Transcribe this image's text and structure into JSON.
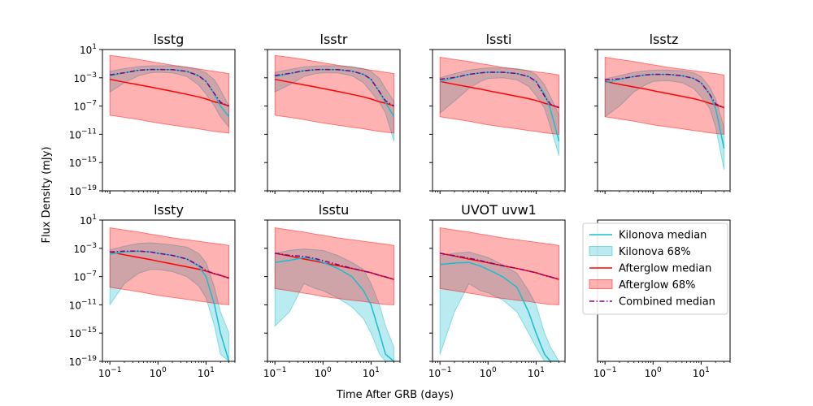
{
  "figure": {
    "xlabel": "Time After GRB (days)",
    "ylabel": "Flux Density (mJy)"
  },
  "legend": {
    "entries": [
      {
        "label": "Kilonova median",
        "kind": "line",
        "color": "#17becf",
        "dash": "solid"
      },
      {
        "label": "Kilonova 68%",
        "kind": "band",
        "color": "#17becf"
      },
      {
        "label": "Afterglow median",
        "kind": "line",
        "color": "#ff0000",
        "dash": "solid"
      },
      {
        "label": "Afterglow 68%",
        "kind": "band",
        "color": "#ff0000"
      },
      {
        "label": "Combined median",
        "kind": "line",
        "color": "#800080",
        "dash": "dashdot"
      }
    ]
  },
  "chart_data": [
    {
      "type": "line",
      "title": "lsstg",
      "xscale": "log",
      "yscale": "log",
      "xlim": [
        0.07,
        40
      ],
      "ylim": [
        1e-19,
        10
      ],
      "xticks": [
        "10^-1",
        "10^0",
        "10^1"
      ],
      "yticks": [
        "10^1",
        "10^-3",
        "10^-7",
        "10^-11",
        "10^-15",
        "10^-19"
      ],
      "x": [
        0.1,
        0.2,
        0.4,
        0.7,
        1,
        2,
        4,
        7,
        10,
        15,
        20,
        30
      ],
      "kilonova_median": [
        0.002,
        0.005,
        0.012,
        0.015,
        0.015,
        0.014,
        0.008,
        0.002,
        0.0003,
        5e-06,
        1e-07,
        3e-09
      ],
      "kilonova_lower": [
        1e-05,
        0.0002,
        0.002,
        0.005,
        0.006,
        0.005,
        0.0015,
        0.0001,
        5e-06,
        1e-07,
        3e-09,
        1e-10
      ],
      "kilonova_upper": [
        0.008,
        0.02,
        0.04,
        0.05,
        0.05,
        0.05,
        0.035,
        0.015,
        0.005,
        0.0005,
        2e-05,
        1e-07
      ],
      "afterglow_median": [
        0.0006,
        0.00024,
        0.0001,
        5e-05,
        3e-05,
        1.2e-05,
        4.5e-06,
        2e-06,
        1e-06,
        4e-07,
        2.5e-07,
        1e-07
      ],
      "afterglow_lower": [
        5e-09,
        2.5e-09,
        1.2e-09,
        6e-10,
        4e-10,
        2e-10,
        1e-10,
        6e-11,
        4e-11,
        2.5e-11,
        2e-11,
        1.5e-11
      ],
      "afterglow_upper": [
        1.5,
        0.8,
        0.4,
        0.2,
        0.13,
        0.06,
        0.03,
        0.018,
        0.012,
        0.008,
        0.006,
        0.004
      ],
      "combined_median": [
        0.0026,
        0.0052,
        0.012,
        0.015,
        0.015,
        0.014,
        0.008,
        0.002,
        0.0003,
        5.4e-06,
        3.5e-07,
        1e-07
      ]
    },
    {
      "type": "line",
      "title": "lsstr",
      "xscale": "log",
      "yscale": "log",
      "xlim": [
        0.07,
        40
      ],
      "ylim": [
        1e-19,
        10
      ],
      "xticks": [
        "10^-1",
        "10^0",
        "10^1"
      ],
      "yticks": [
        "10^1",
        "10^-3",
        "10^-7",
        "10^-11",
        "10^-15",
        "10^-19"
      ],
      "x": [
        0.1,
        0.2,
        0.4,
        0.7,
        1,
        2,
        4,
        7,
        10,
        15,
        20,
        30
      ],
      "kilonova_median": [
        0.0015,
        0.004,
        0.01,
        0.014,
        0.015,
        0.014,
        0.009,
        0.003,
        0.0006,
        1e-05,
        3e-07,
        3e-09
      ],
      "kilonova_lower": [
        1e-05,
        0.0001,
        0.0015,
        0.004,
        0.005,
        0.005,
        0.002,
        0.0002,
        1e-05,
        3e-07,
        1e-08,
        1e-12
      ],
      "kilonova_upper": [
        0.006,
        0.015,
        0.035,
        0.045,
        0.05,
        0.05,
        0.04,
        0.02,
        0.008,
        0.0008,
        3e-05,
        5e-07
      ],
      "afterglow_median": [
        0.0006,
        0.00024,
        0.0001,
        5e-05,
        3e-05,
        1.2e-05,
        4.5e-06,
        2e-06,
        1e-06,
        4e-07,
        2.5e-07,
        1e-07
      ],
      "afterglow_lower": [
        5e-09,
        2.5e-09,
        1.2e-09,
        6e-10,
        4e-10,
        2e-10,
        1e-10,
        6e-11,
        4e-11,
        2.5e-11,
        2e-11,
        1.5e-11
      ],
      "afterglow_upper": [
        1.5,
        0.8,
        0.4,
        0.2,
        0.13,
        0.06,
        0.03,
        0.018,
        0.012,
        0.008,
        0.006,
        0.004
      ],
      "combined_median": [
        0.0021,
        0.0042,
        0.01,
        0.014,
        0.015,
        0.014,
        0.009,
        0.003,
        0.0006,
        1e-05,
        5.5e-07,
        1e-07
      ]
    },
    {
      "type": "line",
      "title": "lssti",
      "xscale": "log",
      "yscale": "log",
      "xlim": [
        0.07,
        40
      ],
      "ylim": [
        1e-19,
        10
      ],
      "xticks": [
        "10^-1",
        "10^0",
        "10^1"
      ],
      "yticks": [
        "10^1",
        "10^-3",
        "10^-7",
        "10^-11",
        "10^-15",
        "10^-19"
      ],
      "x": [
        0.1,
        0.2,
        0.4,
        0.7,
        1,
        2,
        4,
        7,
        10,
        15,
        20,
        30
      ],
      "kilonova_median": [
        0.0003,
        0.001,
        0.003,
        0.005,
        0.006,
        0.006,
        0.004,
        0.0015,
        0.0003,
        5e-06,
        3e-08,
        1e-12
      ],
      "kilonova_lower": [
        1e-08,
        5e-07,
        3e-05,
        0.0003,
        0.0008,
        0.001,
        0.0005,
        6e-05,
        3e-06,
        5e-08,
        1e-10,
        1e-14
      ],
      "kilonova_upper": [
        0.001,
        0.004,
        0.012,
        0.02,
        0.025,
        0.025,
        0.02,
        0.01,
        0.003,
        0.0001,
        2e-06,
        5e-09
      ],
      "afterglow_median": [
        0.0003,
        0.00012,
        5e-05,
        2.5e-05,
        1.5e-05,
        6e-06,
        2.4e-06,
        1.1e-06,
        6e-07,
        2.5e-07,
        1.5e-07,
        6e-08
      ],
      "afterglow_lower": [
        3e-09,
        1.5e-09,
        7e-10,
        3.5e-10,
        2.2e-10,
        1.1e-10,
        6e-11,
        3.5e-11,
        2.5e-11,
        1.6e-11,
        1.3e-11,
        1e-11
      ],
      "afterglow_upper": [
        0.8,
        0.4,
        0.2,
        0.1,
        0.07,
        0.03,
        0.016,
        0.01,
        0.007,
        0.005,
        0.004,
        0.0025
      ],
      "combined_median": [
        0.0006,
        0.0011,
        0.003,
        0.005,
        0.006,
        0.006,
        0.004,
        0.0015,
        0.0003,
        2.6e-06,
        1.8e-07,
        6e-08
      ]
    },
    {
      "type": "line",
      "title": "lsstz",
      "xscale": "log",
      "yscale": "log",
      "xlim": [
        0.07,
        40
      ],
      "ylim": [
        1e-19,
        10
      ],
      "xticks": [
        "10^-1",
        "10^0",
        "10^1"
      ],
      "yticks": [
        "10^1",
        "10^-3",
        "10^-7",
        "10^-11",
        "10^-15",
        "10^-19"
      ],
      "x": [
        0.1,
        0.2,
        0.4,
        0.7,
        1,
        2,
        4,
        7,
        10,
        15,
        20,
        30
      ],
      "kilonova_median": [
        0.0002,
        0.0006,
        0.0015,
        0.0025,
        0.003,
        0.003,
        0.002,
        0.0008,
        0.0002,
        5e-06,
        5e-08,
        1e-13
      ],
      "kilonova_lower": [
        3e-09,
        1e-07,
        1e-05,
        0.0001,
        0.0003,
        0.0004,
        0.0002,
        3e-05,
        2e-06,
        5e-08,
        1e-10,
        1e-16
      ],
      "kilonova_upper": [
        0.0007,
        0.002,
        0.006,
        0.01,
        0.012,
        0.012,
        0.01,
        0.005,
        0.0015,
        5e-05,
        1e-06,
        1e-10
      ],
      "afterglow_median": [
        0.0003,
        0.00012,
        5e-05,
        2.5e-05,
        1.5e-05,
        6e-06,
        2.4e-06,
        1.1e-06,
        6e-07,
        2.5e-07,
        1.5e-07,
        6e-08
      ],
      "afterglow_lower": [
        3e-09,
        1.5e-09,
        7e-10,
        3.5e-10,
        2.2e-10,
        1.1e-10,
        6e-11,
        3.5e-11,
        2.5e-11,
        1.6e-11,
        1.3e-11,
        1e-11
      ],
      "afterglow_upper": [
        0.8,
        0.4,
        0.2,
        0.1,
        0.07,
        0.03,
        0.016,
        0.01,
        0.007,
        0.005,
        0.004,
        0.0025
      ],
      "combined_median": [
        0.0005,
        0.0007,
        0.0015,
        0.0025,
        0.003,
        0.003,
        0.002,
        0.0008,
        0.0002,
        5.2e-06,
        2e-07,
        6e-08
      ]
    },
    {
      "type": "line",
      "title": "lssty",
      "xscale": "log",
      "yscale": "log",
      "xlim": [
        0.07,
        40
      ],
      "ylim": [
        1e-19,
        10
      ],
      "xticks": [
        "10^-1",
        "10^0",
        "10^1"
      ],
      "yticks": [
        "10^1",
        "10^-3",
        "10^-7",
        "10^-11",
        "10^-15",
        "10^-19"
      ],
      "x": [
        0.1,
        0.2,
        0.4,
        0.7,
        1,
        2,
        4,
        7,
        10,
        15,
        20,
        30
      ],
      "kilonova_median": [
        0.00015,
        0.0003,
        0.0004,
        0.0003,
        0.0002,
        0.0001,
        3e-05,
        3e-06,
        1e-07,
        1e-11,
        1e-15,
        1e-19
      ],
      "kilonova_lower": [
        1e-11,
        1e-08,
        3e-07,
        1e-06,
        1e-06,
        5e-07,
        1e-07,
        5e-09,
        1e-10,
        1e-14,
        1e-18,
        1e-19
      ],
      "kilonova_upper": [
        0.0006,
        0.002,
        0.005,
        0.006,
        0.005,
        0.003,
        0.0015,
        0.0002,
        1e-05,
        3e-09,
        1e-12,
        1e-15
      ],
      "afterglow_median": [
        0.0003,
        0.00012,
        5e-05,
        2.5e-05,
        1.5e-05,
        6e-06,
        2.4e-06,
        1.1e-06,
        6e-07,
        2.5e-07,
        1.5e-07,
        6e-08
      ],
      "afterglow_lower": [
        3e-09,
        1.5e-09,
        7e-10,
        3.5e-10,
        2.2e-10,
        1.1e-10,
        6e-11,
        3.5e-11,
        2.5e-11,
        1.6e-11,
        1.3e-11,
        1e-11
      ],
      "afterglow_upper": [
        0.8,
        0.4,
        0.2,
        0.1,
        0.07,
        0.03,
        0.016,
        0.01,
        0.007,
        0.005,
        0.004,
        0.0025
      ],
      "combined_median": [
        0.0003,
        0.0004,
        0.0004,
        0.0003,
        0.0002,
        0.0001,
        3e-05,
        4e-06,
        7e-07,
        2.5e-07,
        1.5e-07,
        6e-08
      ]
    },
    {
      "type": "line",
      "title": "lsstu",
      "xscale": "log",
      "yscale": "log",
      "xlim": [
        0.07,
        40
      ],
      "ylim": [
        1e-19,
        10
      ],
      "xticks": [
        "10^-1",
        "10^0",
        "10^1"
      ],
      "yticks": [
        "10^1",
        "10^-3",
        "10^-7",
        "10^-11",
        "10^-15",
        "10^-19"
      ],
      "x": [
        0.1,
        0.2,
        0.4,
        0.7,
        1,
        2,
        4,
        7,
        10,
        15,
        20,
        30
      ],
      "kilonova_median": [
        1e-05,
        2e-05,
        5e-05,
        2.5e-05,
        1e-05,
        1.5e-06,
        1e-07,
        1e-09,
        1e-11,
        1e-15,
        1e-18,
        1e-19
      ],
      "kilonova_lower": [
        1e-14,
        1e-12,
        1e-08,
        2e-09,
        1e-09,
        1e-10,
        5e-12,
        1e-13,
        1e-15,
        1e-18,
        1e-19,
        1e-19
      ],
      "kilonova_upper": [
        0.0002,
        0.0005,
        0.0008,
        0.0006,
        0.0005,
        0.0001,
        1e-05,
        1e-06,
        1e-08,
        1e-11,
        1e-14,
        1e-17
      ],
      "afterglow_median": [
        0.0002,
        8e-05,
        3e-05,
        1.5e-05,
        9e-06,
        3.5e-06,
        1.4e-06,
        6e-07,
        3.5e-07,
        1.5e-07,
        9e-08,
        4e-08
      ],
      "afterglow_lower": [
        2e-09,
        1e-09,
        4.5e-10,
        2.5e-10,
        1.5e-10,
        8e-11,
        4.5e-11,
        3e-11,
        2e-11,
        1.4e-11,
        1.1e-11,
        1e-11
      ],
      "afterglow_upper": [
        0.8,
        0.4,
        0.2,
        0.1,
        0.07,
        0.03,
        0.016,
        0.01,
        0.007,
        0.005,
        0.004,
        0.0025
      ],
      "combined_median": [
        0.0002,
        0.0001,
        7e-05,
        3.5e-05,
        1.8e-05,
        5e-06,
        1.5e-06,
        6e-07,
        3.5e-07,
        1.5e-07,
        9e-08,
        4e-08
      ]
    },
    {
      "type": "line",
      "title": "UVOT uvw1",
      "xscale": "log",
      "yscale": "log",
      "xlim": [
        0.07,
        40
      ],
      "ylim": [
        1e-19,
        10
      ],
      "xticks": [
        "10^-1",
        "10^0",
        "10^1"
      ],
      "yticks": [
        "10^1",
        "10^-3",
        "10^-7",
        "10^-11",
        "10^-15",
        "10^-19"
      ],
      "x": [
        0.1,
        0.2,
        0.4,
        0.7,
        1,
        2,
        4,
        7,
        10,
        15,
        20,
        30
      ],
      "kilonova_median": [
        5e-06,
        8e-06,
        1e-05,
        3e-06,
        1e-06,
        1e-07,
        3e-09,
        1e-12,
        1e-15,
        1e-18,
        1e-19,
        1e-19
      ],
      "kilonova_lower": [
        1e-18,
        1e-12,
        1e-08,
        1e-09,
        5e-10,
        5e-11,
        1e-12,
        1e-15,
        1e-17,
        1e-19,
        1e-19,
        1e-19
      ],
      "kilonova_upper": [
        0.0001,
        0.0002,
        0.0003,
        0.0001,
        5e-05,
        5e-06,
        3e-07,
        1e-09,
        1e-11,
        1e-15,
        1e-17,
        1e-19
      ],
      "afterglow_median": [
        0.0002,
        8e-05,
        3e-05,
        1.5e-05,
        9e-06,
        3.5e-06,
        1.4e-06,
        6e-07,
        3.5e-07,
        1.5e-07,
        9e-08,
        4e-08
      ],
      "afterglow_lower": [
        2e-09,
        1e-09,
        4.5e-10,
        2.5e-10,
        1.5e-10,
        8e-11,
        4.5e-11,
        3e-11,
        2e-11,
        1.4e-11,
        1.1e-11,
        1e-11
      ],
      "afterglow_upper": [
        0.8,
        0.4,
        0.2,
        0.1,
        0.07,
        0.03,
        0.016,
        0.01,
        0.007,
        0.005,
        0.004,
        0.0025
      ],
      "combined_median": [
        0.0002,
        9e-05,
        4e-05,
        1.8e-05,
        1e-05,
        3.6e-06,
        1.4e-06,
        6e-07,
        3.5e-07,
        1.5e-07,
        9e-08,
        4e-08
      ]
    }
  ]
}
